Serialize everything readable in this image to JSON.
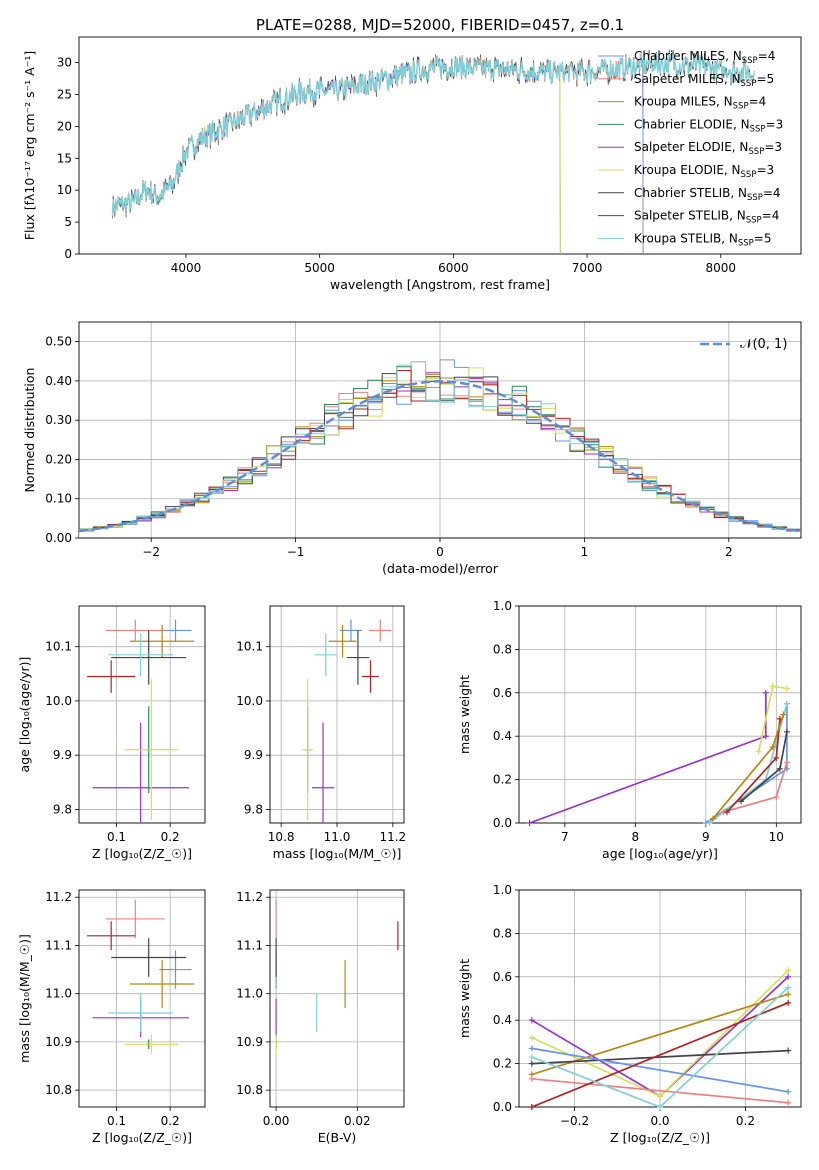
{
  "figure_title": "PLATE=0288, MJD=52000, FIBERID=0457, z=0.1",
  "colors": {
    "Chabrier MILES": "#6495ed",
    "Salpeter MILES": "#f08080",
    "Kroupa MILES": "#b8860b",
    "Chabrier ELODIE": "#2e8b57",
    "Salpeter ELODIE": "#9932cc",
    "Kroupa ELODIE": "#d4e157",
    "Chabrier STELIB": "#444444",
    "Salpeter STELIB": "#b22222",
    "Kroupa STELIB": "#80d0d8",
    "grid": "#b0b0b0",
    "normal_curve": "#5b8fd6"
  },
  "chart_data": [
    {
      "id": "spectrum",
      "type": "line",
      "xlabel": "wavelength [Angstrom, rest frame]",
      "ylabel": "Flux [f$_\\lambda$10$^{-17}$ erg cm$^{-2}$ s$^{-1}$ A$^{-1}$]",
      "ylabel_display": "Flux [fλ10⁻¹⁷ erg cm⁻² s⁻¹ A⁻¹]",
      "xlim": [
        3200,
        8600
      ],
      "ylim": [
        0,
        34
      ],
      "xticks": [
        4000,
        5000,
        6000,
        7000,
        8000
      ],
      "yticks": [
        0,
        5,
        10,
        15,
        20,
        25,
        30
      ],
      "grid": false,
      "legend_position": "top-right",
      "legend": [
        {
          "name": "Chabrier MILES",
          "nssp": 4
        },
        {
          "name": "Salpeter MILES",
          "nssp": 5
        },
        {
          "name": "Kroupa MILES",
          "nssp": 4
        },
        {
          "name": "Chabrier ELODIE",
          "nssp": 3
        },
        {
          "name": "Salpeter ELODIE",
          "nssp": 3
        },
        {
          "name": "Kroupa ELODIE",
          "nssp": 3
        },
        {
          "name": "Chabrier STELIB",
          "nssp": 4
        },
        {
          "name": "Salpeter STELIB",
          "nssp": 4
        },
        {
          "name": "Kroupa STELIB",
          "nssp": 5
        }
      ],
      "continuum": {
        "x": [
          3450,
          3600,
          3700,
          3800,
          3900,
          4000,
          4100,
          4200,
          4300,
          4400,
          4500,
          4600,
          4700,
          4800,
          4900,
          5000,
          5100,
          5200,
          5400,
          5600,
          5800,
          6000,
          6200,
          6400,
          6600,
          6800,
          7000,
          7200,
          7400,
          7600,
          7800,
          8000,
          8200
        ],
        "y": [
          7.5,
          8,
          10,
          9,
          11,
          16,
          18,
          19,
          20,
          21,
          22,
          23,
          24,
          25,
          25.5,
          25.5,
          25.5,
          26,
          27,
          28,
          29,
          29.5,
          29,
          29,
          28.5,
          28.5,
          28.5,
          29,
          29.5,
          30,
          29.5,
          29,
          28.5
        ]
      }
    },
    {
      "id": "residuals",
      "type": "histogram",
      "xlabel": "(data-model)/error",
      "ylabel": "Normed distribution",
      "xlim": [
        -2.5,
        2.5
      ],
      "ylim": [
        0,
        0.55
      ],
      "xticks": [
        -2,
        -1,
        0,
        1,
        2
      ],
      "yticks": [
        0,
        0.1,
        0.2,
        0.3,
        0.4,
        0.5
      ],
      "grid": true,
      "legend": [
        {
          "name": "$\\mathcal{N}(0,1)$",
          "display": "𝒩(0, 1)"
        }
      ],
      "bin_width": 0.1
    },
    {
      "id": "z-age",
      "type": "scatter",
      "xlabel": "Z [log$_{10}$($Z/Z_\\odot$)]",
      "ylabel": "age  [log$_{10}$($age/yr$)]",
      "xlim": [
        0.03,
        0.265
      ],
      "ylim": [
        9.775,
        10.175
      ],
      "xticks": [
        0.1,
        0.2
      ],
      "yticks": [
        9.8,
        9.9,
        10.0,
        10.1
      ],
      "grid": true
    },
    {
      "id": "mass-age",
      "type": "scatter",
      "xlabel": "mass [log$_{10}$($M/M_\\odot$)]",
      "ylabel": "",
      "xlim": [
        10.76,
        11.24
      ],
      "ylim": [
        9.775,
        10.175
      ],
      "xticks": [
        10.8,
        11.0,
        11.2
      ],
      "yticks": [
        9.8,
        9.9,
        10.0,
        10.1
      ],
      "grid": true
    },
    {
      "id": "age-weight",
      "type": "line",
      "xlabel": "age  [log$_{10}$($age/yr$)]",
      "ylabel": "mass weight",
      "xlim": [
        6.35,
        10.35
      ],
      "ylim": [
        0,
        1.0
      ],
      "xticks": [
        7,
        8,
        9,
        10
      ],
      "yticks": [
        0.0,
        0.2,
        0.4,
        0.6,
        0.8,
        1.0
      ],
      "grid": true
    },
    {
      "id": "z-mass",
      "type": "scatter",
      "xlabel": "Z [log$_{10}$($Z/Z_\\odot$)]",
      "ylabel": "mass [log$_{10}$($M/M_\\odot$)]",
      "xlim": [
        0.03,
        0.265
      ],
      "ylim": [
        10.765,
        11.215
      ],
      "xticks": [
        0.1,
        0.2
      ],
      "yticks": [
        10.8,
        10.9,
        11.0,
        11.1,
        11.2
      ],
      "grid": true
    },
    {
      "id": "ebv-mass",
      "type": "scatter",
      "xlabel": "E(B-V)",
      "ylabel": "",
      "xlim": [
        -0.0015,
        0.0315
      ],
      "ylim": [
        10.765,
        11.215
      ],
      "xticks": [
        0.0,
        0.02
      ],
      "yticks": [
        10.8,
        10.9,
        11.0,
        11.1,
        11.2
      ],
      "grid": true
    },
    {
      "id": "z-weight",
      "type": "line",
      "xlabel": "Z [log$_{10}$($Z/Z_\\odot$)]",
      "ylabel": "mass weight",
      "xlim": [
        -0.33,
        0.33
      ],
      "ylim": [
        0,
        1.0
      ],
      "xticks": [
        -0.2,
        0.0,
        0.2
      ],
      "yticks": [
        0.0,
        0.2,
        0.4,
        0.6,
        0.8,
        1.0
      ],
      "grid": true
    }
  ],
  "fits": [
    {
      "model": "Chabrier MILES",
      "Z": 0.21,
      "dZ": 0.03,
      "age": 10.13,
      "dage": 0.02,
      "mass": 11.05,
      "dmass": 0.04,
      "ebv": 0.0,
      "debv": 0.0
    },
    {
      "model": "Salpeter MILES",
      "Z": 0.135,
      "dZ": 0.055,
      "age": 10.13,
      "dage": 0.02,
      "mass": 11.155,
      "dmass": 0.04,
      "ebv": 0.0,
      "debv": 0.0
    },
    {
      "model": "Kroupa MILES",
      "Z": 0.185,
      "dZ": 0.06,
      "age": 10.11,
      "dage": 0.03,
      "mass": 11.02,
      "dmass": 0.05,
      "ebv": 0.017,
      "debv": 0.0
    },
    {
      "model": "Chabrier ELODIE",
      "Z": 0.16,
      "dZ": 0.005,
      "age": 9.91,
      "dage": 0.08,
      "mass": 10.895,
      "dmass": 0.01,
      "ebv": 0.0,
      "debv": 0.0
    },
    {
      "model": "Salpeter ELODIE",
      "Z": 0.145,
      "dZ": 0.09,
      "age": 9.84,
      "dage": 0.12,
      "mass": 10.95,
      "dmass": 0.04,
      "ebv": 0.0,
      "debv": 0.0
    },
    {
      "model": "Kroupa ELODIE",
      "Z": 0.165,
      "dZ": 0.05,
      "age": 9.91,
      "dage": 0.13,
      "mass": 10.895,
      "dmass": 0.02,
      "ebv": 0.0,
      "debv": 0.0
    },
    {
      "model": "Chabrier STELIB",
      "Z": 0.16,
      "dZ": 0.07,
      "age": 10.08,
      "dage": 0.05,
      "mass": 11.075,
      "dmass": 0.04,
      "ebv": 0.0,
      "debv": 0.0
    },
    {
      "model": "Salpeter STELIB",
      "Z": 0.09,
      "dZ": 0.045,
      "age": 10.045,
      "dage": 0.03,
      "mass": 11.12,
      "dmass": 0.03,
      "ebv": 0.03,
      "debv": 0.0
    },
    {
      "model": "Kroupa STELIB",
      "Z": 0.145,
      "dZ": 0.06,
      "age": 10.085,
      "dage": 0.04,
      "mass": 10.96,
      "dmass": 0.04,
      "ebv": 0.01,
      "debv": 0.0
    }
  ],
  "age_weights": [
    {
      "model": "Salpeter ELODIE",
      "age": [
        6.5,
        9.85,
        9.85
      ],
      "weight": [
        0.0,
        0.4,
        0.6
      ]
    },
    {
      "model": "Kroupa ELODIE",
      "age": [
        9.75,
        9.95,
        10.15
      ],
      "weight": [
        0.33,
        0.63,
        0.62
      ]
    },
    {
      "model": "Chabrier MILES",
      "age": [
        9.0,
        10.15,
        10.15
      ],
      "weight": [
        0.0,
        0.25,
        0.55
      ]
    },
    {
      "model": "Kroupa STELIB",
      "age": [
        9.05,
        9.85,
        10.15
      ],
      "weight": [
        0.0,
        0.2,
        0.55
      ]
    },
    {
      "model": "Salpeter MILES",
      "age": [
        9.25,
        10.0,
        10.15
      ],
      "weight": [
        0.05,
        0.12,
        0.28
      ]
    },
    {
      "model": "Salpeter STELIB",
      "age": [
        9.3,
        10.0,
        10.05
      ],
      "weight": [
        0.05,
        0.3,
        0.48
      ]
    },
    {
      "model": "Chabrier STELIB",
      "age": [
        9.5,
        10.05,
        10.15
      ],
      "weight": [
        0.1,
        0.25,
        0.42
      ]
    },
    {
      "model": "Kroupa MILES",
      "age": [
        9.1,
        9.95,
        10.1
      ],
      "weight": [
        0.02,
        0.35,
        0.5
      ]
    }
  ],
  "z_weights": [
    {
      "model": "Salpeter ELODIE",
      "Z": [
        -0.3,
        0.0,
        0.3
      ],
      "weight": [
        0.4,
        0.05,
        0.6
      ]
    },
    {
      "model": "Kroupa ELODIE",
      "Z": [
        -0.3,
        0.0,
        0.3
      ],
      "weight": [
        0.32,
        0.05,
        0.63
      ]
    },
    {
      "model": "Kroupa MILES",
      "Z": [
        -0.3,
        0.3
      ],
      "weight": [
        0.15,
        0.52
      ]
    },
    {
      "model": "Chabrier STELIB",
      "Z": [
        -0.3,
        0.3
      ],
      "weight": [
        0.2,
        0.26
      ]
    },
    {
      "model": "Chabrier MILES",
      "Z": [
        -0.3,
        0.3
      ],
      "weight": [
        0.27,
        0.07
      ]
    },
    {
      "model": "Salpeter MILES",
      "Z": [
        -0.3,
        0.3
      ],
      "weight": [
        0.13,
        0.02
      ]
    },
    {
      "model": "Salpeter STELIB",
      "Z": [
        -0.3,
        -0.3,
        0.3
      ],
      "weight": [
        0.0,
        0.0,
        0.48
      ]
    },
    {
      "model": "Kroupa STELIB",
      "Z": [
        -0.3,
        0.0,
        0.3
      ],
      "weight": [
        0.23,
        0.0,
        0.55
      ]
    }
  ]
}
